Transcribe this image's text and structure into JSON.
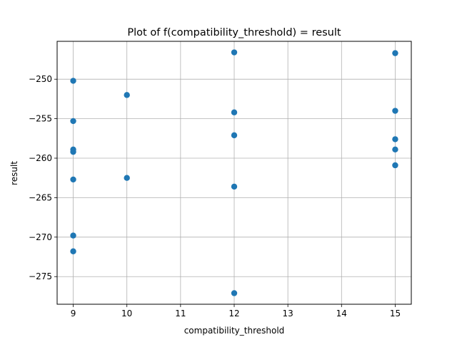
{
  "chart_data": {
    "type": "scatter",
    "title": "Plot of f(compatibility_threshold) = result",
    "xlabel": "compatibility_threshold",
    "ylabel": "result",
    "xlim": [
      8.7,
      15.3
    ],
    "ylim": [
      -278.5,
      -245.2
    ],
    "xticks": [
      9,
      10,
      11,
      12,
      13,
      14,
      15
    ],
    "yticks": [
      -275,
      -270,
      -265,
      -260,
      -255,
      -250
    ],
    "grid": true,
    "marker_color": "#1f77b4",
    "points": [
      {
        "x": 9,
        "y": -250.2
      },
      {
        "x": 9,
        "y": -255.3
      },
      {
        "x": 9,
        "y": -258.9
      },
      {
        "x": 9,
        "y": -259.2
      },
      {
        "x": 9,
        "y": -262.7
      },
      {
        "x": 9,
        "y": -269.8
      },
      {
        "x": 9,
        "y": -271.8
      },
      {
        "x": 10,
        "y": -252.0
      },
      {
        "x": 10,
        "y": -262.5
      },
      {
        "x": 12,
        "y": -246.6
      },
      {
        "x": 12,
        "y": -254.2
      },
      {
        "x": 12,
        "y": -257.1
      },
      {
        "x": 12,
        "y": -263.6
      },
      {
        "x": 12,
        "y": -277.1
      },
      {
        "x": 15,
        "y": -246.7
      },
      {
        "x": 15,
        "y": -254.0
      },
      {
        "x": 15,
        "y": -257.6
      },
      {
        "x": 15,
        "y": -258.9
      },
      {
        "x": 15,
        "y": -260.9
      }
    ]
  }
}
